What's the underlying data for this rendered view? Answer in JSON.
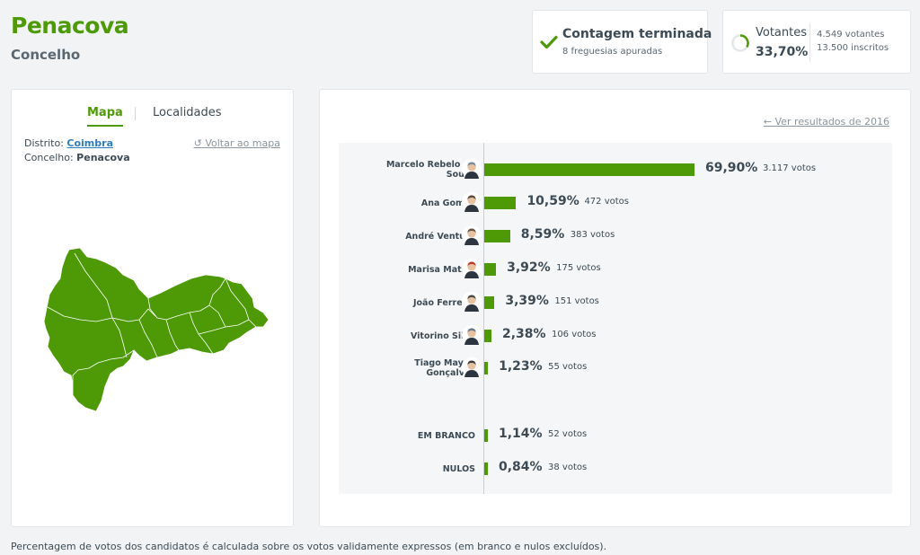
{
  "header": {
    "title": "Penacova",
    "subtitle": "Concelho"
  },
  "status": {
    "title": "Contagem terminada",
    "subtitle": "8 freguesias apuradas",
    "icon": "check-icon",
    "color": "#4e9a06"
  },
  "voters": {
    "label": "Votantes",
    "percent": "33,70%",
    "percent_value": 33.7,
    "voters_count": "4.549 votantes",
    "registered": "13.500 inscritos"
  },
  "map_panel": {
    "tabs": [
      {
        "label": "Mapa",
        "active": true
      },
      {
        "label": "Localidades",
        "active": false
      }
    ],
    "distrito_label": "Distrito:",
    "distrito_value": "Coimbra",
    "concelho_label": "Concelho:",
    "concelho_value": "Penacova",
    "back_link": "Voltar ao mapa",
    "map_color": "#4e9a06"
  },
  "results": {
    "prev_link": "Ver resultados de 2016",
    "candidates": [
      {
        "name": "Marcelo Rebelo de Sousa",
        "percent_label": "69,90%",
        "percent": 69.9,
        "votes_label": "3.117 votos"
      },
      {
        "name": "Ana Gomes",
        "percent_label": "10,59%",
        "percent": 10.59,
        "votes_label": "472 votos"
      },
      {
        "name": "André Ventura",
        "percent_label": "8,59%",
        "percent": 8.59,
        "votes_label": "383 votos"
      },
      {
        "name": "Marisa Matias",
        "percent_label": "3,92%",
        "percent": 3.92,
        "votes_label": "175 votos"
      },
      {
        "name": "João Ferreira",
        "percent_label": "3,39%",
        "percent": 3.39,
        "votes_label": "151 votos"
      },
      {
        "name": "Vitorino Silva",
        "percent_label": "2,38%",
        "percent": 2.38,
        "votes_label": "106 votos"
      },
      {
        "name": "Tiago Mayan Gonçalves",
        "percent_label": "1,23%",
        "percent": 1.23,
        "votes_label": "55 votos"
      }
    ],
    "blank": {
      "name": "EM BRANCO",
      "percent_label": "1,14%",
      "percent": 1.14,
      "votes_label": "52 votos"
    },
    "null": {
      "name": "NULOS",
      "percent_label": "0,84%",
      "percent": 0.84,
      "votes_label": "38 votos"
    },
    "bar_color": "#4e9a06"
  },
  "footnote": "Percentagem de votos dos candidatos é calculada sobre os votos validamente expressos (em branco e nulos excluídos)."
}
